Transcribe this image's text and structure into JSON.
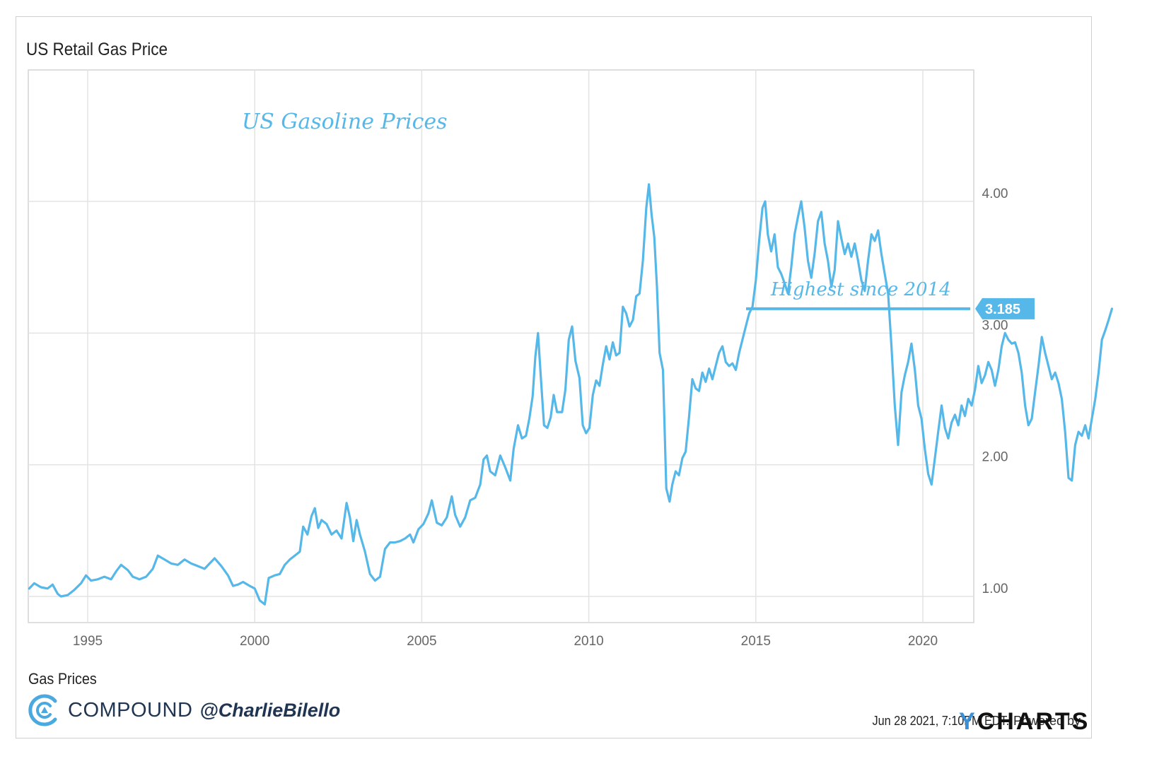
{
  "chart_data": {
    "type": "line",
    "title": "US Retail Gas Price",
    "series": [
      {
        "name": "Gas Prices",
        "color": "#56b8e8",
        "points": [
          [
            1993.25,
            1.06
          ],
          [
            1993.4,
            1.1
          ],
          [
            1993.6,
            1.07
          ],
          [
            1993.8,
            1.06
          ],
          [
            1993.95,
            1.09
          ],
          [
            1994.1,
            1.02
          ],
          [
            1994.2,
            1.0
          ],
          [
            1994.4,
            1.01
          ],
          [
            1994.6,
            1.05
          ],
          [
            1994.8,
            1.1
          ],
          [
            1994.95,
            1.16
          ],
          [
            1995.1,
            1.12
          ],
          [
            1995.3,
            1.13
          ],
          [
            1995.5,
            1.15
          ],
          [
            1995.7,
            1.13
          ],
          [
            1995.85,
            1.19
          ],
          [
            1996.0,
            1.24
          ],
          [
            1996.2,
            1.2
          ],
          [
            1996.35,
            1.15
          ],
          [
            1996.55,
            1.13
          ],
          [
            1996.75,
            1.15
          ],
          [
            1996.95,
            1.21
          ],
          [
            1997.1,
            1.31
          ],
          [
            1997.3,
            1.28
          ],
          [
            1997.5,
            1.25
          ],
          [
            1997.7,
            1.24
          ],
          [
            1997.9,
            1.28
          ],
          [
            1998.1,
            1.25
          ],
          [
            1998.3,
            1.23
          ],
          [
            1998.5,
            1.21
          ],
          [
            1998.65,
            1.25
          ],
          [
            1998.8,
            1.29
          ],
          [
            1999.0,
            1.23
          ],
          [
            1999.2,
            1.16
          ],
          [
            1999.35,
            1.08
          ],
          [
            1999.5,
            1.09
          ],
          [
            1999.65,
            1.11
          ],
          [
            1999.85,
            1.08
          ],
          [
            2000.0,
            1.06
          ],
          [
            2000.15,
            0.97
          ],
          [
            2000.3,
            0.94
          ],
          [
            2000.42,
            1.14
          ],
          [
            2000.6,
            1.16
          ],
          [
            2000.75,
            1.17
          ],
          [
            2000.9,
            1.24
          ],
          [
            2001.05,
            1.28
          ],
          [
            2001.2,
            1.31
          ],
          [
            2001.35,
            1.34
          ],
          [
            2001.45,
            1.53
          ],
          [
            2001.58,
            1.47
          ],
          [
            2001.7,
            1.61
          ],
          [
            2001.8,
            1.67
          ],
          [
            2001.9,
            1.52
          ],
          [
            2002.0,
            1.58
          ],
          [
            2002.15,
            1.55
          ],
          [
            2002.3,
            1.47
          ],
          [
            2002.45,
            1.5
          ],
          [
            2002.6,
            1.44
          ],
          [
            2002.75,
            1.71
          ],
          [
            2002.85,
            1.6
          ],
          [
            2002.95,
            1.42
          ],
          [
            2003.05,
            1.58
          ],
          [
            2003.15,
            1.47
          ],
          [
            2003.3,
            1.34
          ],
          [
            2003.45,
            1.17
          ],
          [
            2003.6,
            1.12
          ],
          [
            2003.75,
            1.15
          ],
          [
            2003.9,
            1.36
          ],
          [
            2004.05,
            1.41
          ],
          [
            2004.2,
            1.41
          ],
          [
            2004.35,
            1.42
          ],
          [
            2004.5,
            1.44
          ],
          [
            2004.65,
            1.47
          ],
          [
            2004.75,
            1.41
          ],
          [
            2004.9,
            1.51
          ],
          [
            2005.05,
            1.55
          ],
          [
            2005.2,
            1.63
          ],
          [
            2005.3,
            1.73
          ],
          [
            2005.45,
            1.56
          ],
          [
            2005.6,
            1.54
          ],
          [
            2005.75,
            1.6
          ],
          [
            2005.9,
            1.76
          ],
          [
            2006.0,
            1.62
          ],
          [
            2006.15,
            1.53
          ],
          [
            2006.3,
            1.6
          ],
          [
            2006.45,
            1.73
          ],
          [
            2006.6,
            1.75
          ],
          [
            2006.75,
            1.85
          ],
          [
            2006.85,
            2.04
          ],
          [
            2006.95,
            2.07
          ],
          [
            2007.05,
            1.95
          ],
          [
            2007.2,
            1.92
          ],
          [
            2007.35,
            2.07
          ],
          [
            2007.5,
            1.98
          ],
          [
            2007.65,
            1.88
          ],
          [
            2007.75,
            2.12
          ],
          [
            2007.88,
            2.3
          ],
          [
            2008.0,
            2.2
          ],
          [
            2008.12,
            2.22
          ],
          [
            2008.22,
            2.35
          ],
          [
            2008.32,
            2.52
          ],
          [
            2008.4,
            2.82
          ],
          [
            2008.48,
            3.0
          ],
          [
            2008.56,
            2.68
          ],
          [
            2008.66,
            2.3
          ],
          [
            2008.76,
            2.28
          ],
          [
            2008.86,
            2.36
          ],
          [
            2008.95,
            2.53
          ],
          [
            2009.05,
            2.4
          ],
          [
            2009.2,
            2.4
          ],
          [
            2009.3,
            2.57
          ],
          [
            2009.4,
            2.95
          ],
          [
            2009.5,
            3.05
          ],
          [
            2009.6,
            2.79
          ],
          [
            2009.72,
            2.66
          ],
          [
            2009.82,
            2.3
          ],
          [
            2009.92,
            2.24
          ],
          [
            2010.02,
            2.28
          ],
          [
            2010.12,
            2.53
          ],
          [
            2010.22,
            2.64
          ],
          [
            2010.32,
            2.6
          ],
          [
            2010.42,
            2.76
          ],
          [
            2010.52,
            2.9
          ],
          [
            2010.62,
            2.8
          ],
          [
            2010.72,
            2.93
          ],
          [
            2010.82,
            2.83
          ],
          [
            2010.92,
            2.85
          ],
          [
            2011.02,
            3.2
          ],
          [
            2011.12,
            3.15
          ],
          [
            2011.22,
            3.05
          ],
          [
            2011.32,
            3.1
          ],
          [
            2011.42,
            3.28
          ],
          [
            2011.52,
            3.3
          ],
          [
            2011.62,
            3.55
          ],
          [
            2011.72,
            3.95
          ],
          [
            2011.8,
            4.13
          ],
          [
            2011.88,
            3.9
          ],
          [
            2011.96,
            3.73
          ],
          [
            2012.04,
            3.35
          ],
          [
            2012.12,
            2.85
          ],
          [
            2012.22,
            2.72
          ],
          [
            2012.32,
            1.82
          ],
          [
            2012.42,
            1.72
          ],
          [
            2012.5,
            1.85
          ],
          [
            2012.6,
            1.95
          ],
          [
            2012.7,
            1.92
          ],
          [
            2012.8,
            2.05
          ],
          [
            2012.9,
            2.1
          ],
          [
            2013.0,
            2.36
          ],
          [
            2013.1,
            2.65
          ],
          [
            2013.2,
            2.58
          ],
          [
            2013.3,
            2.56
          ],
          [
            2013.4,
            2.7
          ],
          [
            2013.5,
            2.63
          ],
          [
            2013.6,
            2.73
          ],
          [
            2013.7,
            2.65
          ],
          [
            2013.8,
            2.75
          ],
          [
            2013.9,
            2.85
          ],
          [
            2014.0,
            2.9
          ],
          [
            2014.1,
            2.78
          ],
          [
            2014.2,
            2.75
          ],
          [
            2014.3,
            2.77
          ],
          [
            2014.4,
            2.72
          ],
          [
            2014.5,
            2.85
          ],
          [
            2014.6,
            2.95
          ],
          [
            2014.7,
            3.05
          ],
          [
            2014.8,
            3.15
          ],
          [
            2014.9,
            3.2
          ],
          [
            2015.0,
            3.4
          ],
          [
            2015.1,
            3.7
          ],
          [
            2015.2,
            3.95
          ],
          [
            2015.28,
            4.0
          ],
          [
            2015.36,
            3.75
          ],
          [
            2015.46,
            3.62
          ],
          [
            2015.56,
            3.75
          ],
          [
            2015.66,
            3.5
          ],
          [
            2015.76,
            3.45
          ],
          [
            2015.86,
            3.38
          ],
          [
            2015.96,
            3.3
          ],
          [
            2016.06,
            3.5
          ],
          [
            2016.16,
            3.75
          ],
          [
            2016.26,
            3.88
          ],
          [
            2016.36,
            4.0
          ],
          [
            2016.46,
            3.8
          ],
          [
            2016.56,
            3.55
          ],
          [
            2016.66,
            3.42
          ],
          [
            2016.76,
            3.6
          ],
          [
            2016.86,
            3.85
          ],
          [
            2016.96,
            3.92
          ],
          [
            2017.06,
            3.68
          ],
          [
            2017.16,
            3.55
          ],
          [
            2017.26,
            3.35
          ],
          [
            2017.36,
            3.48
          ],
          [
            2017.46,
            3.85
          ],
          [
            2017.56,
            3.72
          ],
          [
            2017.66,
            3.6
          ],
          [
            2017.76,
            3.68
          ],
          [
            2017.86,
            3.58
          ],
          [
            2017.96,
            3.68
          ],
          [
            2018.06,
            3.55
          ],
          [
            2018.16,
            3.4
          ],
          [
            2018.26,
            3.32
          ],
          [
            2018.36,
            3.55
          ],
          [
            2018.46,
            3.75
          ],
          [
            2018.56,
            3.7
          ],
          [
            2018.66,
            3.78
          ],
          [
            2018.76,
            3.6
          ],
          [
            2018.86,
            3.45
          ],
          [
            2018.96,
            3.3
          ],
          [
            2019.06,
            2.9
          ],
          [
            2019.16,
            2.45
          ],
          [
            2019.26,
            2.15
          ],
          [
            2019.36,
            2.55
          ],
          [
            2019.46,
            2.68
          ],
          [
            2019.56,
            2.78
          ],
          [
            2019.66,
            2.92
          ],
          [
            2019.76,
            2.72
          ],
          [
            2019.86,
            2.45
          ],
          [
            2019.96,
            2.35
          ],
          [
            2020.06,
            2.12
          ],
          [
            2020.16,
            1.93
          ],
          [
            2020.26,
            1.85
          ],
          [
            2020.36,
            2.05
          ],
          [
            2020.46,
            2.25
          ],
          [
            2020.56,
            2.45
          ],
          [
            2020.66,
            2.28
          ],
          [
            2020.76,
            2.2
          ],
          [
            2020.86,
            2.32
          ],
          [
            2020.96,
            2.38
          ],
          [
            2021.06,
            2.3
          ],
          [
            2021.16,
            2.45
          ],
          [
            2021.26,
            2.37
          ],
          [
            2021.36,
            2.5
          ],
          [
            2021.46,
            2.45
          ],
          [
            2021.56,
            2.57
          ],
          [
            2021.66,
            2.75
          ],
          [
            2021.76,
            2.62
          ],
          [
            2021.86,
            2.68
          ],
          [
            2021.96,
            2.78
          ],
          [
            2022.06,
            2.72
          ],
          [
            2022.16,
            2.6
          ],
          [
            2022.26,
            2.72
          ],
          [
            2022.36,
            2.9
          ],
          [
            2022.46,
            3.0
          ],
          [
            2022.56,
            2.95
          ],
          [
            2022.66,
            2.92
          ],
          [
            2022.76,
            2.93
          ],
          [
            2022.86,
            2.85
          ],
          [
            2022.96,
            2.7
          ],
          [
            2023.06,
            2.45
          ],
          [
            2023.16,
            2.3
          ],
          [
            2023.26,
            2.35
          ],
          [
            2023.36,
            2.55
          ],
          [
            2023.46,
            2.75
          ],
          [
            2023.56,
            2.97
          ],
          [
            2023.66,
            2.85
          ],
          [
            2023.76,
            2.75
          ],
          [
            2023.86,
            2.65
          ],
          [
            2023.96,
            2.7
          ],
          [
            2024.06,
            2.62
          ],
          [
            2024.16,
            2.5
          ],
          [
            2024.26,
            2.25
          ],
          [
            2024.36,
            1.9
          ],
          [
            2024.46,
            1.88
          ],
          [
            2024.56,
            2.15
          ],
          [
            2024.66,
            2.25
          ],
          [
            2024.76,
            2.22
          ],
          [
            2024.86,
            2.3
          ],
          [
            2024.96,
            2.2
          ],
          [
            2025.06,
            2.35
          ],
          [
            2025.16,
            2.5
          ],
          [
            2025.26,
            2.7
          ],
          [
            2025.36,
            2.95
          ],
          [
            2025.46,
            3.02
          ],
          [
            2025.56,
            3.1
          ],
          [
            2025.66,
            3.185
          ]
        ]
      }
    ],
    "x_ticks": [
      "1995",
      "2000",
      "2005",
      "2010",
      "2015",
      "2020"
    ],
    "y_ticks": [
      "1.00",
      "2.00",
      "3.00",
      "4.00"
    ],
    "ylim": [
      0.8,
      4.9
    ],
    "grid": true,
    "last_value_label": "3.185",
    "annotations": {
      "title_note": "US Gasoline Prices",
      "highlight_note": "Highest since 2014"
    }
  },
  "legend_label": "Gas Prices",
  "brand": {
    "name": "COMPOUND",
    "handle": "@CharlieBilello"
  },
  "footer": {
    "timestamp": "Jun 28 2021, 7:10PM EDT.",
    "powered_by": "Powered by",
    "ycharts_y": "Y",
    "ycharts_rest": "CHARTS"
  },
  "colors": {
    "line": "#56b8e8",
    "grid": "#e3e3e3",
    "axis_text": "#666666",
    "brand": "#1f3552"
  }
}
